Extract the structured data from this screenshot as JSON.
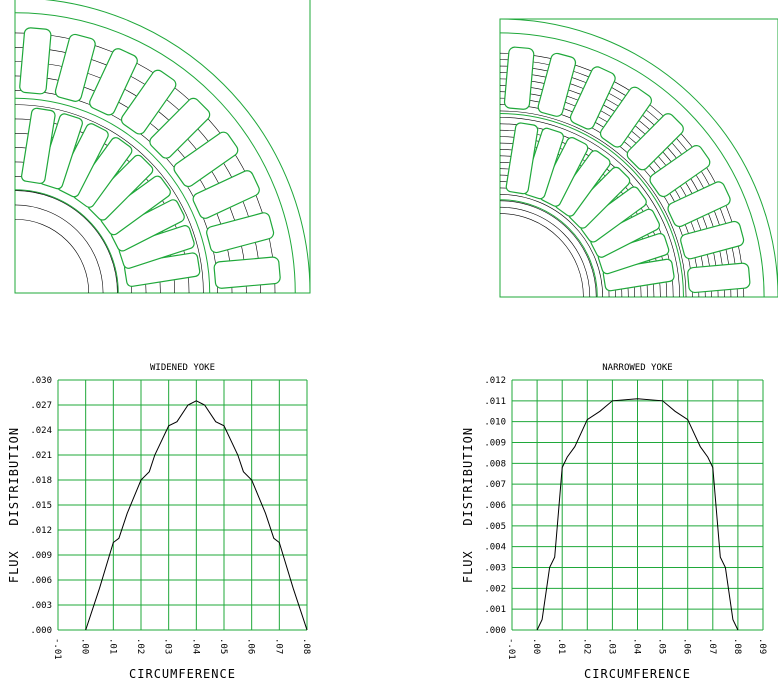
{
  "chart_data": [
    {
      "type": "line",
      "title": "WIDENED YOKE",
      "x_label": "CIRCUMFERENCE",
      "y_label": "FLUX   DISTRIBUTION",
      "x": [
        0,
        0.002,
        0.005,
        0.01,
        0.012,
        0.015,
        0.02,
        0.023,
        0.025,
        0.03,
        0.033,
        0.037,
        0.04,
        0.043,
        0.047,
        0.05,
        0.055,
        0.057,
        0.06,
        0.065,
        0.068,
        0.07,
        0.075,
        0.078,
        0.08
      ],
      "values": [
        0,
        0.002,
        0.005,
        0.0105,
        0.011,
        0.014,
        0.018,
        0.019,
        0.021,
        0.0245,
        0.025,
        0.027,
        0.0275,
        0.027,
        0.025,
        0.0245,
        0.021,
        0.019,
        0.018,
        0.014,
        0.011,
        0.0105,
        0.005,
        0.002,
        0
      ],
      "color": "#000000",
      "grid": true,
      "grid_color": "#1fa83a",
      "xlim": [
        -0.01,
        0.08
      ],
      "xticks": [
        {
          "value": -0.01,
          "label": "-.01"
        },
        {
          "value": 0,
          "label": ".00"
        },
        {
          "value": 0.01,
          "label": ".01"
        },
        {
          "value": 0.02,
          "label": ".02"
        },
        {
          "value": 0.03,
          "label": ".03"
        },
        {
          "value": 0.04,
          "label": ".04"
        },
        {
          "value": 0.05,
          "label": ".05"
        },
        {
          "value": 0.06,
          "label": ".06"
        },
        {
          "value": 0.07,
          "label": ".07"
        },
        {
          "value": 0.08,
          "label": ".08"
        }
      ],
      "ylim": [
        0,
        0.03
      ],
      "yticks": [
        {
          "value": 0,
          "label": ".000"
        },
        {
          "value": 0.003,
          "label": ".003"
        },
        {
          "value": 0.006,
          "label": ".006"
        },
        {
          "value": 0.009,
          "label": ".009"
        },
        {
          "value": 0.012,
          "label": ".012"
        },
        {
          "value": 0.015,
          "label": ".015"
        },
        {
          "value": 0.018,
          "label": ".018"
        },
        {
          "value": 0.021,
          "label": ".021"
        },
        {
          "value": 0.024,
          "label": ".024"
        },
        {
          "value": 0.027,
          "label": ".027"
        },
        {
          "value": 0.03,
          "label": ".030"
        }
      ]
    },
    {
      "type": "line",
      "title": "NARROWED YOKE",
      "x_label": "CIRCUMFERENCE",
      "y_label": "FLUX   DISTRIBUTION",
      "x": [
        0,
        0.002,
        0.005,
        0.007,
        0.01,
        0.012,
        0.015,
        0.02,
        0.025,
        0.03,
        0.04,
        0.05,
        0.055,
        0.06,
        0.065,
        0.068,
        0.07,
        0.073,
        0.075,
        0.078,
        0.08
      ],
      "values": [
        0,
        0.0005,
        0.003,
        0.0035,
        0.0078,
        0.0083,
        0.0088,
        0.0101,
        0.0105,
        0.011,
        0.0111,
        0.011,
        0.0105,
        0.0101,
        0.0088,
        0.0083,
        0.0078,
        0.0035,
        0.003,
        0.0005,
        0
      ],
      "color": "#000000",
      "grid": true,
      "grid_color": "#1fa83a",
      "xlim": [
        -0.01,
        0.09
      ],
      "xticks": [
        {
          "value": -0.01,
          "label": "-.01"
        },
        {
          "value": 0,
          "label": ".00"
        },
        {
          "value": 0.01,
          "label": ".01"
        },
        {
          "value": 0.02,
          "label": ".02"
        },
        {
          "value": 0.03,
          "label": ".03"
        },
        {
          "value": 0.04,
          "label": ".04"
        },
        {
          "value": 0.05,
          "label": ".05"
        },
        {
          "value": 0.06,
          "label": ".06"
        },
        {
          "value": 0.07,
          "label": ".07"
        },
        {
          "value": 0.08,
          "label": ".08"
        },
        {
          "value": 0.09,
          "label": ".09"
        }
      ],
      "ylim": [
        0,
        0.012
      ],
      "yticks": [
        {
          "value": 0,
          "label": ".000"
        },
        {
          "value": 0.001,
          "label": ".001"
        },
        {
          "value": 0.002,
          "label": ".002"
        },
        {
          "value": 0.003,
          "label": ".003"
        },
        {
          "value": 0.004,
          "label": ".004"
        },
        {
          "value": 0.005,
          "label": ".005"
        },
        {
          "value": 0.006,
          "label": ".006"
        },
        {
          "value": 0.007,
          "label": ".007"
        },
        {
          "value": 0.008,
          "label": ".008"
        },
        {
          "value": 0.009,
          "label": ".009"
        },
        {
          "value": 0.01,
          "label": ".010"
        },
        {
          "value": 0.011,
          "label": ".011"
        },
        {
          "value": 0.012,
          "label": ".012"
        }
      ]
    }
  ]
}
